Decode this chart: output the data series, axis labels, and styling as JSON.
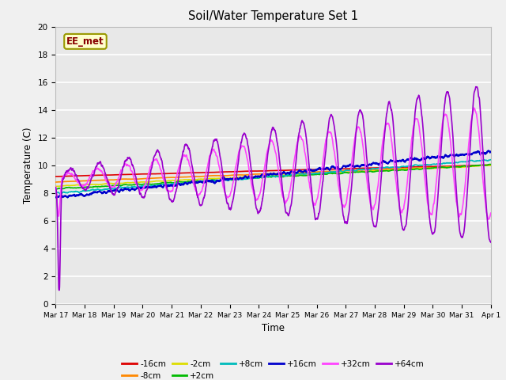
{
  "title": "Soil/Water Temperature Set 1",
  "xlabel": "Time",
  "ylabel": "Temperature (C)",
  "ylim": [
    0,
    20
  ],
  "xlim": [
    0,
    15
  ],
  "plot_bg": "#e8e8e8",
  "fig_bg": "#f0f0f0",
  "watermark_text": "EE_met",
  "series_order": [
    "-16cm",
    "-8cm",
    "-2cm",
    "+2cm",
    "+8cm",
    "+16cm",
    "+32cm",
    "+64cm"
  ],
  "series": {
    "-16cm": {
      "color": "#dd0000",
      "lw": 1.2
    },
    "-8cm": {
      "color": "#ff8800",
      "lw": 1.2
    },
    "-2cm": {
      "color": "#dddd00",
      "lw": 1.2
    },
    "+2cm": {
      "color": "#00bb00",
      "lw": 1.2
    },
    "+8cm": {
      "color": "#00bbbb",
      "lw": 1.2
    },
    "+16cm": {
      "color": "#0000cc",
      "lw": 1.5
    },
    "+32cm": {
      "color": "#ff44ff",
      "lw": 1.2
    },
    "+64cm": {
      "color": "#9900cc",
      "lw": 1.2
    }
  },
  "xtick_labels": [
    "Mar 17",
    "Mar 18",
    "Mar 19",
    "Mar 20",
    "Mar 21",
    "Mar 22",
    "Mar 23",
    "Mar 24",
    "Mar 25",
    "Mar 26",
    "Mar 27",
    "Mar 28",
    "Mar 29",
    "Mar 30",
    "Mar 31",
    "Apr 1"
  ],
  "ytick_labels": [
    0,
    2,
    4,
    6,
    8,
    10,
    12,
    14,
    16,
    18,
    20
  ],
  "legend_row1": [
    "-16cm",
    "-8cm",
    "-2cm",
    "+2cm",
    "+8cm",
    "+16cm"
  ],
  "legend_row2": [
    "+32cm",
    "+64cm"
  ]
}
